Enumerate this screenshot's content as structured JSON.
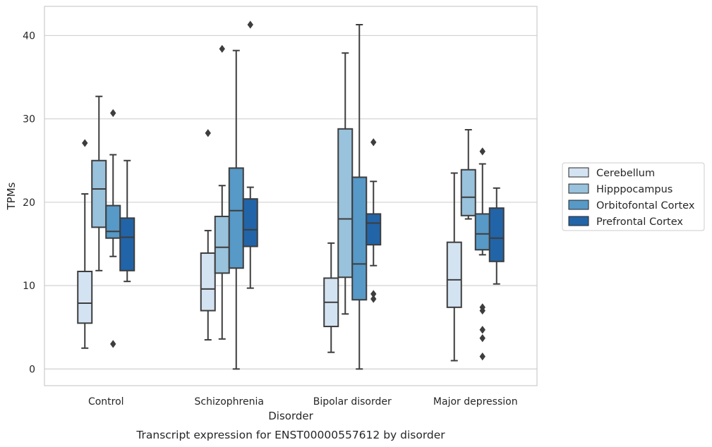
{
  "chart_data": {
    "type": "box",
    "title": "",
    "caption": "Transcript expression for ENST00000557612 by disorder",
    "xlabel": "Disorder",
    "ylabel": "TPMs",
    "ylim": [
      -2,
      43.5
    ],
    "yticks": [
      0,
      10,
      20,
      30,
      40
    ],
    "grid": "horizontal",
    "legend_position": "right",
    "categories": [
      "Control",
      "Schizophrenia",
      "Bipolar disorder",
      "Major depression"
    ],
    "series": [
      {
        "name": "Cerebellum",
        "color": "#d4e3f2",
        "boxes": [
          {
            "whisker_low": 2.5,
            "q1": 5.5,
            "median": 7.9,
            "q3": 11.7,
            "whisker_high": 21.0,
            "outliers": [
              27.1
            ]
          },
          {
            "whisker_low": 3.5,
            "q1": 7.0,
            "median": 9.6,
            "q3": 13.9,
            "whisker_high": 16.6,
            "outliers": [
              28.3
            ]
          },
          {
            "whisker_low": 2.0,
            "q1": 5.1,
            "median": 8.0,
            "q3": 10.9,
            "whisker_high": 15.1,
            "outliers": []
          },
          {
            "whisker_low": 1.0,
            "q1": 7.4,
            "median": 10.7,
            "q3": 15.2,
            "whisker_high": 23.5,
            "outliers": []
          }
        ]
      },
      {
        "name": "Hipppocampus",
        "color": "#99c2dc",
        "boxes": [
          {
            "whisker_low": 11.8,
            "q1": 17.0,
            "median": 21.6,
            "q3": 25.0,
            "whisker_high": 32.7,
            "outliers": []
          },
          {
            "whisker_low": 3.6,
            "q1": 11.5,
            "median": 14.6,
            "q3": 18.3,
            "whisker_high": 22.0,
            "outliers": [
              38.4
            ]
          },
          {
            "whisker_low": 6.6,
            "q1": 11.0,
            "median": 18.0,
            "q3": 28.8,
            "whisker_high": 37.9,
            "outliers": []
          },
          {
            "whisker_low": 18.0,
            "q1": 18.4,
            "median": 20.6,
            "q3": 23.9,
            "whisker_high": 28.7,
            "outliers": []
          }
        ]
      },
      {
        "name": "Orbitofontal Cortex",
        "color": "#5799c7",
        "boxes": [
          {
            "whisker_low": 13.5,
            "q1": 15.7,
            "median": 16.5,
            "q3": 19.6,
            "whisker_high": 25.7,
            "outliers": [
              30.7,
              3.0
            ]
          },
          {
            "whisker_low": 0.0,
            "q1": 12.1,
            "median": 19.0,
            "q3": 24.1,
            "whisker_high": 38.2,
            "outliers": []
          },
          {
            "whisker_low": 0.0,
            "q1": 8.3,
            "median": 12.6,
            "q3": 23.0,
            "whisker_high": 41.3,
            "outliers": []
          },
          {
            "whisker_low": 13.7,
            "q1": 14.3,
            "median": 16.2,
            "q3": 18.6,
            "whisker_high": 24.6,
            "outliers": [
              26.1,
              7.4,
              7.0,
              4.7,
              3.7,
              1.5
            ]
          }
        ]
      },
      {
        "name": "Prefrontal Cortex",
        "color": "#2264a8",
        "boxes": [
          {
            "whisker_low": 10.5,
            "q1": 11.8,
            "median": 15.8,
            "q3": 18.1,
            "whisker_high": 25.0,
            "outliers": []
          },
          {
            "whisker_low": 9.7,
            "q1": 14.7,
            "median": 16.7,
            "q3": 20.4,
            "whisker_high": 21.8,
            "outliers": [
              41.3
            ]
          },
          {
            "whisker_low": 12.4,
            "q1": 14.9,
            "median": 17.5,
            "q3": 18.6,
            "whisker_high": 22.5,
            "outliers": [
              27.2,
              9.0,
              8.4
            ]
          },
          {
            "whisker_low": 10.2,
            "q1": 12.9,
            "median": 15.7,
            "q3": 19.3,
            "whisker_high": 21.7,
            "outliers": []
          }
        ]
      }
    ]
  }
}
